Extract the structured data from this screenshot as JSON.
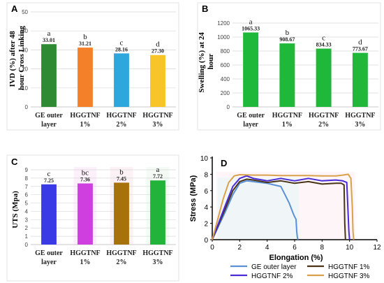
{
  "figure": {
    "panels": [
      {
        "id": "A",
        "ylabel_lines": [
          "IVD (%) after 48",
          "hour Cross Linking"
        ],
        "ytick_labels": [
          "0",
          "10",
          "20",
          "30",
          "40",
          "50"
        ],
        "category_lines": [
          [
            "GE outer",
            "layer"
          ],
          [
            "HGGTNF",
            "1%"
          ],
          [
            "HGGTNF",
            "2%"
          ],
          [
            "HGGTNF",
            "3%"
          ]
        ]
      },
      {
        "id": "B",
        "ylabel_lines": [
          "Swelling (%) at 24",
          "hour"
        ],
        "ytick_labels": [
          "0",
          "200",
          "400",
          "600",
          "800",
          "1000",
          "1200"
        ],
        "category_lines": [
          [
            "GE outer",
            "layer"
          ],
          [
            "HGGTNF",
            "1%"
          ],
          [
            "HGGTNF",
            "2%"
          ],
          [
            "HGGTNF",
            "3%"
          ]
        ]
      },
      {
        "id": "C",
        "ylabel_lines": [
          "UTS (Mpa)"
        ],
        "ytick_labels": [
          "0",
          "1",
          "2",
          "3",
          "4",
          "5",
          "6",
          "7",
          "8",
          "9"
        ],
        "category_lines": [
          [
            "GE outer",
            "layer"
          ],
          [
            "HGGTNF",
            "1%"
          ],
          [
            "HGGTNF",
            "2%"
          ],
          [
            "HGGTNF",
            "3%"
          ]
        ]
      },
      {
        "id": "D",
        "ylabel": "Stress (MPa)",
        "xlabel": "Elongation (%)",
        "ytick_labels": [
          "0",
          "2",
          "4",
          "6",
          "8",
          "10"
        ],
        "xtick_labels": [
          "0",
          "2",
          "4",
          "6",
          "8",
          "10",
          "12"
        ],
        "legend": [
          "GE outer layer",
          "HGGTNF 1%",
          "HGGTNF 2%",
          "HGGTNF 3%"
        ]
      }
    ]
  },
  "chart_data": [
    {
      "type": "bar",
      "panel": "A",
      "title": "",
      "xlabel": "",
      "ylabel": "IVD (%) after 48 hour Cross Linking",
      "categories": [
        "GE outer layer",
        "HGGTNF 1%",
        "HGGTNF 2%",
        "HGGTNF 3%"
      ],
      "values": [
        33.01,
        31.21,
        28.16,
        27.3
      ],
      "value_labels": [
        "33.01",
        "31.21",
        "28.16",
        "27.30"
      ],
      "letters": [
        "a",
        "b",
        "c",
        "d"
      ],
      "colors": [
        "#2e8b34",
        "#f5802a",
        "#2ea7dd",
        "#f7c52a"
      ],
      "ylim": [
        0,
        50
      ],
      "grid": true
    },
    {
      "type": "bar",
      "panel": "B",
      "title": "",
      "xlabel": "",
      "ylabel": "Swelling (%) at 24 hour",
      "categories": [
        "GE outer layer",
        "HGGTNF 1%",
        "HGGTNF 2%",
        "HGGTNF 3%"
      ],
      "values": [
        1065.33,
        908.67,
        834.33,
        773.67
      ],
      "value_labels": [
        "1065.33",
        "908.67",
        "834.33",
        "773.67"
      ],
      "letters": [
        "a",
        "b",
        "c",
        "d"
      ],
      "colors": [
        "#1fb83a",
        "#1fb83a",
        "#1fb83a",
        "#1fb83a"
      ],
      "ylim": [
        0,
        1200
      ],
      "grid": true
    },
    {
      "type": "bar",
      "panel": "C",
      "title": "",
      "xlabel": "",
      "ylabel": "UTS (Mpa)",
      "categories": [
        "GE outer layer",
        "HGGTNF 1%",
        "HGGTNF 2%",
        "HGGTNF 3%"
      ],
      "values": [
        7.25,
        7.36,
        7.45,
        7.72
      ],
      "value_labels": [
        "7.25",
        "7.36",
        "7.45",
        "7.72"
      ],
      "letters": [
        "c",
        "bc",
        "b",
        "a"
      ],
      "colors": [
        "#3a3ae6",
        "#cf3fe0",
        "#a8720a",
        "#22b33a"
      ],
      "ylim": [
        0,
        9
      ],
      "grid": true
    },
    {
      "type": "line",
      "panel": "D",
      "title": "",
      "xlabel": "Elongation (%)",
      "ylabel": "Stress (MPa)",
      "xlim": [
        0,
        12
      ],
      "ylim": [
        0,
        10
      ],
      "legend_position": "bottom",
      "grid": false,
      "series": [
        {
          "name": "GE outer layer",
          "color": "#5b8fd6",
          "x": [
            0,
            0.5,
            1.0,
            1.5,
            2.0,
            2.5,
            3.0,
            3.5,
            4.0,
            4.5,
            5.0,
            5.3,
            5.6,
            5.9,
            6.0,
            6.1,
            6.15,
            6.2,
            6.25
          ],
          "y": [
            0,
            1.8,
            3.6,
            5.5,
            6.9,
            7.2,
            7.1,
            7.0,
            6.9,
            6.7,
            6.5,
            5.5,
            4.5,
            3.2,
            2.8,
            2.5,
            1.0,
            0.3,
            0
          ]
        },
        {
          "name": "HGGTNF 1%",
          "color": "#4a3418",
          "x": [
            0,
            0.5,
            1.0,
            1.5,
            2.0,
            2.5,
            3.0,
            4.0,
            5.0,
            6.0,
            7.0,
            8.0,
            9.0,
            9.4,
            9.6,
            9.65,
            9.7
          ],
          "y": [
            0,
            2.0,
            4.0,
            6.0,
            7.1,
            7.4,
            7.3,
            7.0,
            7.2,
            6.9,
            7.1,
            6.8,
            6.9,
            6.9,
            6.7,
            2.0,
            0
          ]
        },
        {
          "name": "HGGTNF 2%",
          "color": "#4a2bd6",
          "x": [
            0,
            0.5,
            1.0,
            1.5,
            2.0,
            2.5,
            3.0,
            4.0,
            5.0,
            6.0,
            7.0,
            8.0,
            9.0,
            9.5,
            9.8,
            9.9,
            9.95,
            10.0
          ],
          "y": [
            0,
            2.2,
            4.4,
            6.5,
            7.5,
            7.8,
            7.5,
            7.2,
            7.5,
            7.2,
            7.5,
            7.2,
            7.3,
            7.2,
            7.0,
            3.0,
            1.0,
            0
          ]
        },
        {
          "name": "HGGTNF 3%",
          "color": "#d9a24a",
          "x": [
            0,
            0.4,
            0.8,
            1.2,
            1.6,
            2.0,
            3.0,
            4.0,
            5.0,
            6.0,
            7.0,
            8.0,
            9.0,
            9.5,
            9.9,
            10.1,
            10.2,
            10.25,
            10.3
          ],
          "y": [
            0,
            2.5,
            5.0,
            7.0,
            7.8,
            7.95,
            7.9,
            7.9,
            7.85,
            7.85,
            7.85,
            7.8,
            7.8,
            7.9,
            8.0,
            7.5,
            4.0,
            1.0,
            0
          ]
        }
      ]
    }
  ]
}
